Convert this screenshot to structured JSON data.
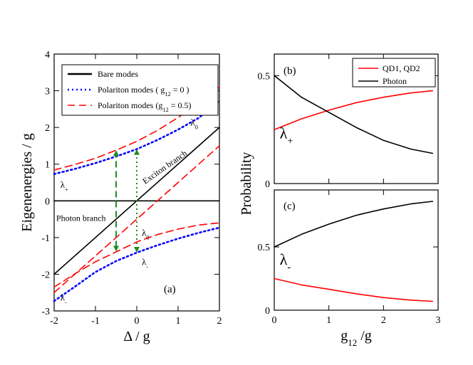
{
  "chart_data": [
    {
      "id": "a",
      "type": "line",
      "panel_label": "(a)",
      "xlabel": "Δ / g",
      "ylabel": "Eigenenergies / g",
      "xlim": [
        -2,
        2
      ],
      "ylim": [
        -3,
        4
      ],
      "xticks": [
        -2,
        -1,
        0,
        1,
        2
      ],
      "xtick_labels": [
        "-2",
        "-1",
        "0",
        "1",
        "2"
      ],
      "yticks": [
        -3,
        -2,
        -1,
        0,
        1,
        2,
        3,
        4
      ],
      "ytick_labels": [
        "-3",
        "-2",
        "-1",
        "0",
        "1",
        "2",
        "3",
        "4"
      ],
      "legend": {
        "placement": "top-left",
        "entries": [
          {
            "label": "Bare modes",
            "color": "#000000",
            "style": "solid"
          },
          {
            "label": "Polariton modes ( g",
            "sub": "12",
            "label_after": " = 0 )",
            "color": "#0000ff",
            "style": "dotted"
          },
          {
            "label": "Polariton modes (g",
            "sub": "12",
            "label_after": " = 0.5)",
            "color": "#ff0000",
            "style": "dashed"
          }
        ]
      },
      "series": [
        {
          "color": "#000000",
          "style": "solid",
          "x": [
            -2,
            2
          ],
          "y": [
            0,
            0
          ]
        },
        {
          "color": "#000000",
          "style": "solid",
          "x": [
            -2,
            2
          ],
          "y": [
            -2,
            2
          ]
        },
        {
          "color": "#0000ff",
          "style": "dotted",
          "x": [
            -2,
            -1.5,
            -1,
            -0.5,
            0,
            0.5,
            1,
            1.5,
            2
          ],
          "y": [
            0.73,
            0.87,
            1.03,
            1.21,
            1.41,
            1.66,
            1.94,
            2.26,
            2.73
          ]
        },
        {
          "color": "#0000ff",
          "style": "dotted",
          "x": [
            -2,
            -1.5,
            -1,
            -0.5,
            0,
            0.5,
            1,
            1.5,
            2
          ],
          "y": [
            -2.73,
            -2.34,
            -1.94,
            -1.64,
            -1.41,
            -1.21,
            -1.03,
            -0.87,
            -0.73
          ]
        },
        {
          "color": "#ff0000",
          "style": "dashed",
          "x": [
            -2,
            -1.5,
            -1,
            -0.5,
            0,
            0.5,
            1,
            1.5,
            2
          ],
          "y": [
            0.84,
            0.99,
            1.16,
            1.38,
            1.62,
            1.92,
            2.27,
            2.66,
            3.1
          ]
        },
        {
          "color": "#ff0000",
          "style": "dashed",
          "x": [
            -2,
            -1.5,
            -1,
            -0.5,
            0,
            0.5,
            1,
            1.5,
            2
          ],
          "y": [
            -2.5,
            -2.0,
            -1.5,
            -1.0,
            -0.5,
            0.0,
            0.5,
            1.0,
            1.5
          ]
        },
        {
          "color": "#ff0000",
          "style": "dashed",
          "x": [
            -2,
            -1.5,
            -1,
            -0.5,
            0,
            0.5,
            1,
            1.5,
            2
          ],
          "y": [
            -2.35,
            -1.99,
            -1.66,
            -1.39,
            -1.12,
            -0.92,
            -0.77,
            -0.66,
            -0.6
          ]
        }
      ],
      "arrows": [
        {
          "color": "#228b22",
          "style": "dashed",
          "x": -0.5,
          "y1": -1.38,
          "y2": 1.38
        },
        {
          "color": "#228b22",
          "style": "dotted",
          "x": 0.0,
          "y1": -1.41,
          "y2": 1.41
        }
      ],
      "annotations": [
        {
          "text": "λ",
          "sub": "+",
          "x": 0.2,
          "y": 2.4,
          "color": "#ff0000"
        },
        {
          "text": "λ",
          "sub": "0",
          "x": 1.3,
          "y": 2.05,
          "color": "#0000ff"
        },
        {
          "text": "λ",
          "sub": "+",
          "x": -1.85,
          "y": 0.35,
          "color": "#0000ff"
        },
        {
          "text": "λ",
          "sub": "0",
          "x": 0.12,
          "y": -0.95,
          "color": "#ff0000"
        },
        {
          "text": "λ",
          "sub": "-",
          "x": 0.12,
          "y": -1.75,
          "color": "#ff0000"
        },
        {
          "text": "λ",
          "sub": "-",
          "x": -1.85,
          "y": -2.72,
          "color": "#0000ff"
        },
        {
          "text": "Photon branch",
          "x": -1.95,
          "y": -0.55,
          "color": "#000000"
        },
        {
          "text": "Exciton branch",
          "x": 0.2,
          "y": 0.45,
          "color": "#000000",
          "rotate": -35
        }
      ]
    },
    {
      "id": "b",
      "type": "line",
      "panel_label": "(b)",
      "ylabel": "Probability",
      "xlim": [
        0,
        3
      ],
      "ylim": [
        0,
        0.6
      ],
      "yticks": [
        0,
        0.5
      ],
      "ytick_labels": [
        "0",
        "0.5"
      ],
      "legend": {
        "placement": "top-right",
        "entries": [
          {
            "label": "QD1, QD2",
            "color": "#ff0000",
            "style": "solid"
          },
          {
            "label": "Photon",
            "color": "#000000",
            "style": "solid"
          }
        ]
      },
      "series": [
        {
          "name": "QD1, QD2",
          "color": "#ff0000",
          "x": [
            0,
            0.5,
            1,
            1.5,
            2,
            2.5,
            2.9
          ],
          "y": [
            0.25,
            0.3,
            0.34,
            0.375,
            0.4,
            0.42,
            0.43
          ]
        },
        {
          "name": "Photon",
          "color": "#000000",
          "x": [
            0,
            0.5,
            1,
            1.5,
            2,
            2.5,
            2.9
          ],
          "y": [
            0.5,
            0.4,
            0.33,
            0.26,
            0.2,
            0.16,
            0.14
          ]
        }
      ],
      "annotations": [
        {
          "text": "λ",
          "sub": "+",
          "x": 0.1,
          "y": 0.21,
          "color": "#000000"
        }
      ]
    },
    {
      "id": "c",
      "type": "line",
      "panel_label": "(c)",
      "xlabel": "g",
      "xlabel_sub": "12",
      "xlabel_after": " /g",
      "xlim": [
        0,
        3
      ],
      "ylim": [
        0,
        0.95
      ],
      "xticks": [
        0,
        1,
        2,
        3
      ],
      "xtick_labels": [
        "0",
        "1",
        "2",
        "3"
      ],
      "yticks": [
        0,
        0.5
      ],
      "ytick_labels": [
        "0",
        "0.5"
      ],
      "series": [
        {
          "name": "QD1, QD2",
          "color": "#ff0000",
          "x": [
            0,
            0.5,
            1,
            1.5,
            2,
            2.5,
            2.9
          ],
          "y": [
            0.25,
            0.2,
            0.165,
            0.13,
            0.1,
            0.08,
            0.07
          ]
        },
        {
          "name": "Photon",
          "color": "#000000",
          "x": [
            0,
            0.5,
            1,
            1.5,
            2,
            2.5,
            2.9
          ],
          "y": [
            0.5,
            0.6,
            0.68,
            0.75,
            0.8,
            0.84,
            0.86
          ]
        }
      ],
      "annotations": [
        {
          "text": "λ",
          "sub": "-",
          "x": 0.1,
          "y": 0.36,
          "color": "#000000"
        }
      ]
    }
  ]
}
